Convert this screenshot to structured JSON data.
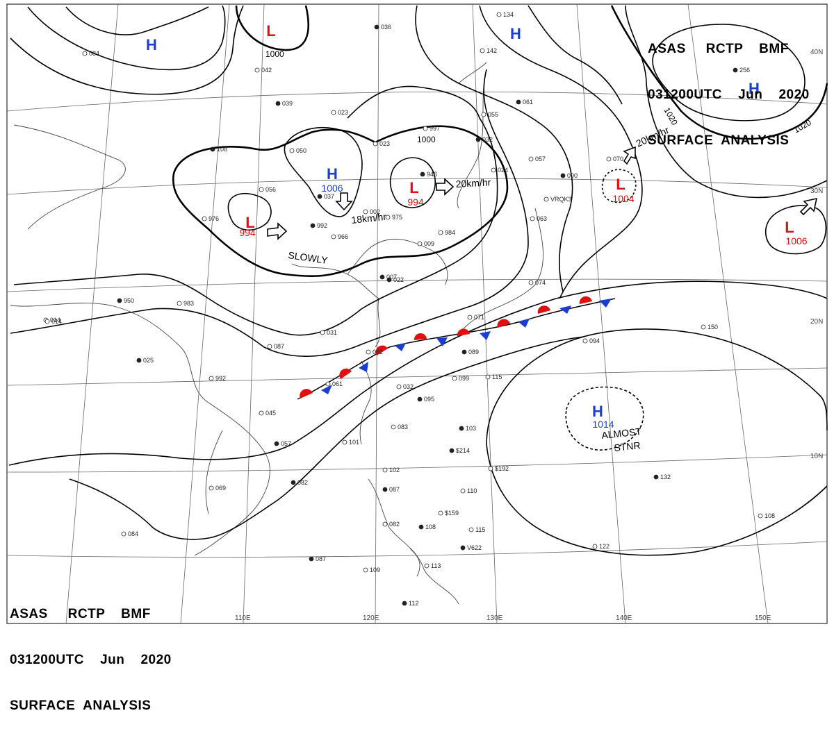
{
  "header_top": {
    "line1": "ASAS     RCTP    BMF",
    "line2": "031200UTC    Jun    2020",
    "line3": "SURFACE  ANALYSIS"
  },
  "header_bottom": {
    "line1": "ASAS     RCTP    BMF",
    "line2": "031200UTC    Jun    2020",
    "line3": "SURFACE  ANALYSIS"
  },
  "lon_labels": [
    "110E",
    "120E",
    "130E",
    "140E",
    "150E"
  ],
  "lat_labels": [
    "40N",
    "30N",
    "20N",
    "10N"
  ],
  "isobar_labels": [
    "1000",
    "1000",
    "1020",
    "1020"
  ],
  "pressure_systems": [
    {
      "type": "H",
      "value": "",
      "color": "#1a3fd0"
    },
    {
      "type": "L",
      "value": "",
      "color": "#e01010"
    },
    {
      "type": "H",
      "value": "",
      "color": "#1a3fd0"
    },
    {
      "type": "H",
      "value": "",
      "color": "#1a3fd0"
    },
    {
      "type": "H",
      "value": "1006",
      "color": "#1a3fd0"
    },
    {
      "type": "L",
      "value": "994",
      "color": "#e01010"
    },
    {
      "type": "L",
      "value": "994",
      "color": "#e01010"
    },
    {
      "type": "L",
      "value": "1004",
      "color": "#e01010"
    },
    {
      "type": "L",
      "value": "1006",
      "color": "#e01010"
    },
    {
      "type": "H",
      "value": "1014",
      "color": "#1a3fd0"
    }
  ],
  "motion_labels": [
    "SLOWLY",
    "18km/hr",
    "20km/hr",
    "20km/hr",
    "ALMOST",
    "STNR"
  ],
  "station_reports": [
    "036",
    "084",
    "042",
    "039",
    "023",
    "023",
    "108",
    "050",
    "056",
    "037",
    "976",
    "966",
    "992",
    "002",
    "975",
    "946",
    "997",
    "055",
    "032",
    "024",
    "057",
    "000",
    "070",
    "063",
    "022",
    "009",
    "984",
    "007",
    "061",
    "074",
    "089",
    "031",
    "087",
    "950",
    "983",
    "014",
    "025",
    "992",
    "045",
    "057",
    "062",
    "032",
    "095",
    "099",
    "115",
    "103",
    "083",
    "101",
    "082",
    "069",
    "102",
    "087",
    "082",
    "110",
    "108",
    "115",
    "084",
    "087",
    "109",
    "113",
    "112",
    "150",
    "094",
    "132",
    "122",
    "108",
    "256",
    "134",
    "142",
    "061",
    "071",
    "014",
    "$214",
    "$159",
    "$192",
    "V622",
    "VRQK3"
  ],
  "colors": {
    "high": "#1a3fd0",
    "low": "#e01010",
    "warm_front": "#e01010",
    "cold_front": "#1a3fd0",
    "line": "#000000",
    "grid": "#555555"
  }
}
